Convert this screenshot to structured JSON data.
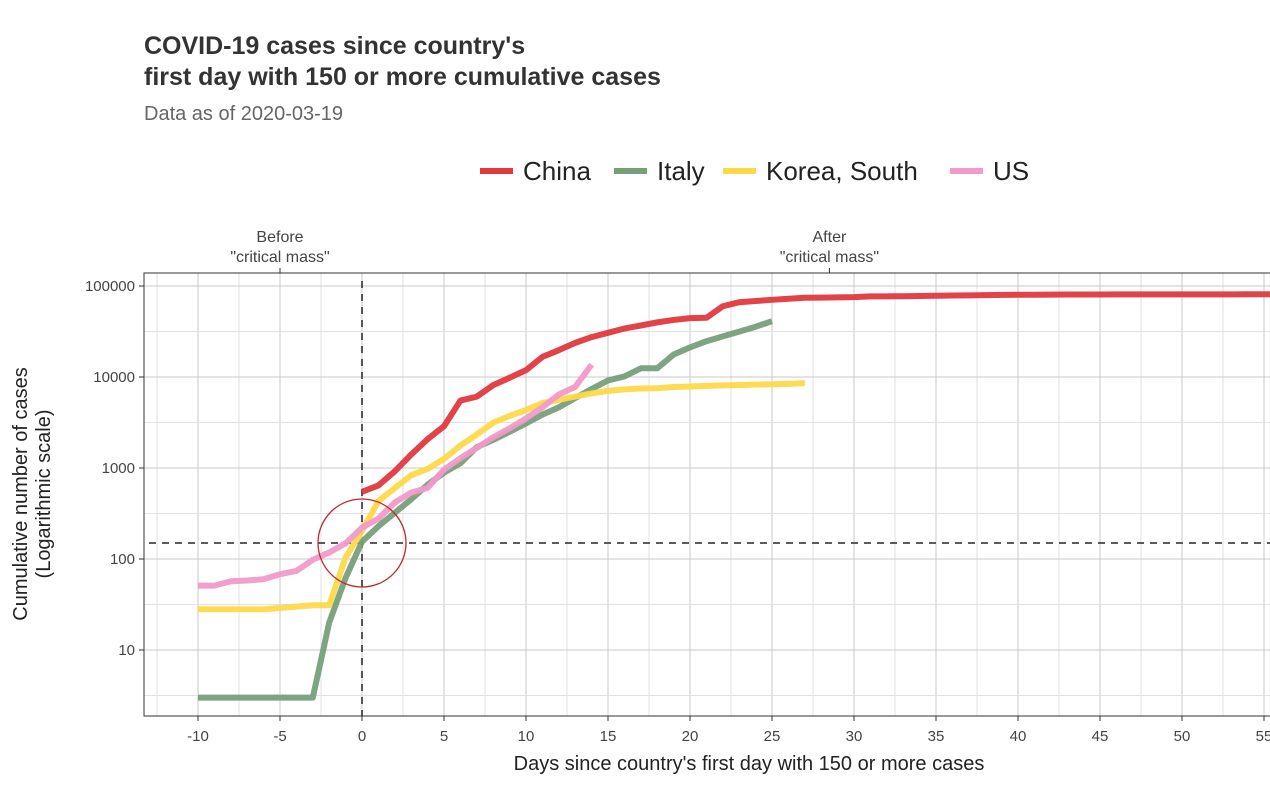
{
  "chart_data": {
    "type": "line",
    "title": [
      "COVID-19 cases since country's",
      "first day with 150 or more cumulative cases"
    ],
    "subtitle": "Data as of 2020-03-19",
    "xlabel": "Days since country's first day with 150 or more cases",
    "ylabel": [
      "Cumulative number of cases",
      "(Logarithmic scale)"
    ],
    "y_scale": "log10",
    "xlim": [
      -13.3,
      55.4
    ],
    "ylim": [
      1.9,
      138000
    ],
    "x_ticks": [
      -10,
      -5,
      0,
      5,
      10,
      15,
      20,
      25,
      30,
      35,
      40,
      45,
      50,
      55
    ],
    "y_ticks": [
      10,
      100,
      1000,
      10000,
      100000
    ],
    "y_tick_labels": [
      "10",
      "100",
      "1000",
      "10000",
      "100000"
    ],
    "grid": true,
    "legend_position": "top",
    "reference_lines": {
      "x": 0,
      "y": 150,
      "style": "dashed"
    },
    "highlight_circle": {
      "x": 0,
      "y": 150,
      "color": "#C0282D"
    },
    "top_annotations": [
      {
        "x": -5,
        "label": [
          "Before",
          "\"critical mass\""
        ]
      },
      {
        "x": 28.5,
        "label": [
          "After",
          "\"critical mass\""
        ]
      }
    ],
    "series": [
      {
        "name": "China",
        "color": "#E0393E",
        "x_start": 0,
        "values": [
          548,
          643,
          920,
          1406,
          2075,
          2877,
          5509,
          6087,
          8141,
          9802,
          11891,
          16630,
          19716,
          23707,
          27440,
          30587,
          34110,
          36814,
          39829,
          42354,
          44386,
          44759,
          59895,
          66358,
          68413,
          70513,
          72434,
          74211,
          74619,
          75077,
          75550,
          77001,
          77022,
          77241,
          77754,
          78166,
          78600,
          78928,
          79356,
          79932,
          80136,
          80261,
          80386,
          80537,
          80690,
          80770,
          80823,
          80860,
          80887,
          80921,
          80932,
          80945,
          80977,
          81003,
          81033,
          81058,
          81102
        ]
      },
      {
        "name": "Italy",
        "color": "#779F7A",
        "x_start": -10,
        "values": [
          3,
          3,
          3,
          3,
          3,
          3,
          3,
          3,
          20,
          62,
          155,
          229,
          322,
          453,
          655,
          888,
          1128,
          1694,
          2036,
          2502,
          3089,
          3858,
          4636,
          5883,
          7375,
          9172,
          10149,
          12462,
          12462,
          17660,
          21157,
          24747,
          27980,
          31506,
          35713,
          41035
        ]
      },
      {
        "name": "Korea, South",
        "color": "#FDD94A",
        "x_start": -10,
        "values": [
          28,
          28,
          28,
          28,
          28,
          29,
          30,
          31,
          31,
          104,
          204,
          433,
          602,
          833,
          977,
          1261,
          1766,
          2337,
          3150,
          3736,
          4335,
          5186,
          5621,
          6088,
          6593,
          7041,
          7314,
          7478,
          7513,
          7755,
          7869,
          7979,
          8086,
          8162,
          8236,
          8320,
          8413,
          8565
        ]
      },
      {
        "name": "US",
        "color": "#F29AC8",
        "x_start": -10,
        "values": [
          51,
          51,
          57,
          58,
          60,
          68,
          74,
          98,
          118,
          149,
          221,
          278,
          417,
          537,
          605,
          959,
          1281,
          1663,
          2179,
          2726,
          3499,
          4632,
          6421,
          7786,
          13680
        ]
      }
    ]
  }
}
